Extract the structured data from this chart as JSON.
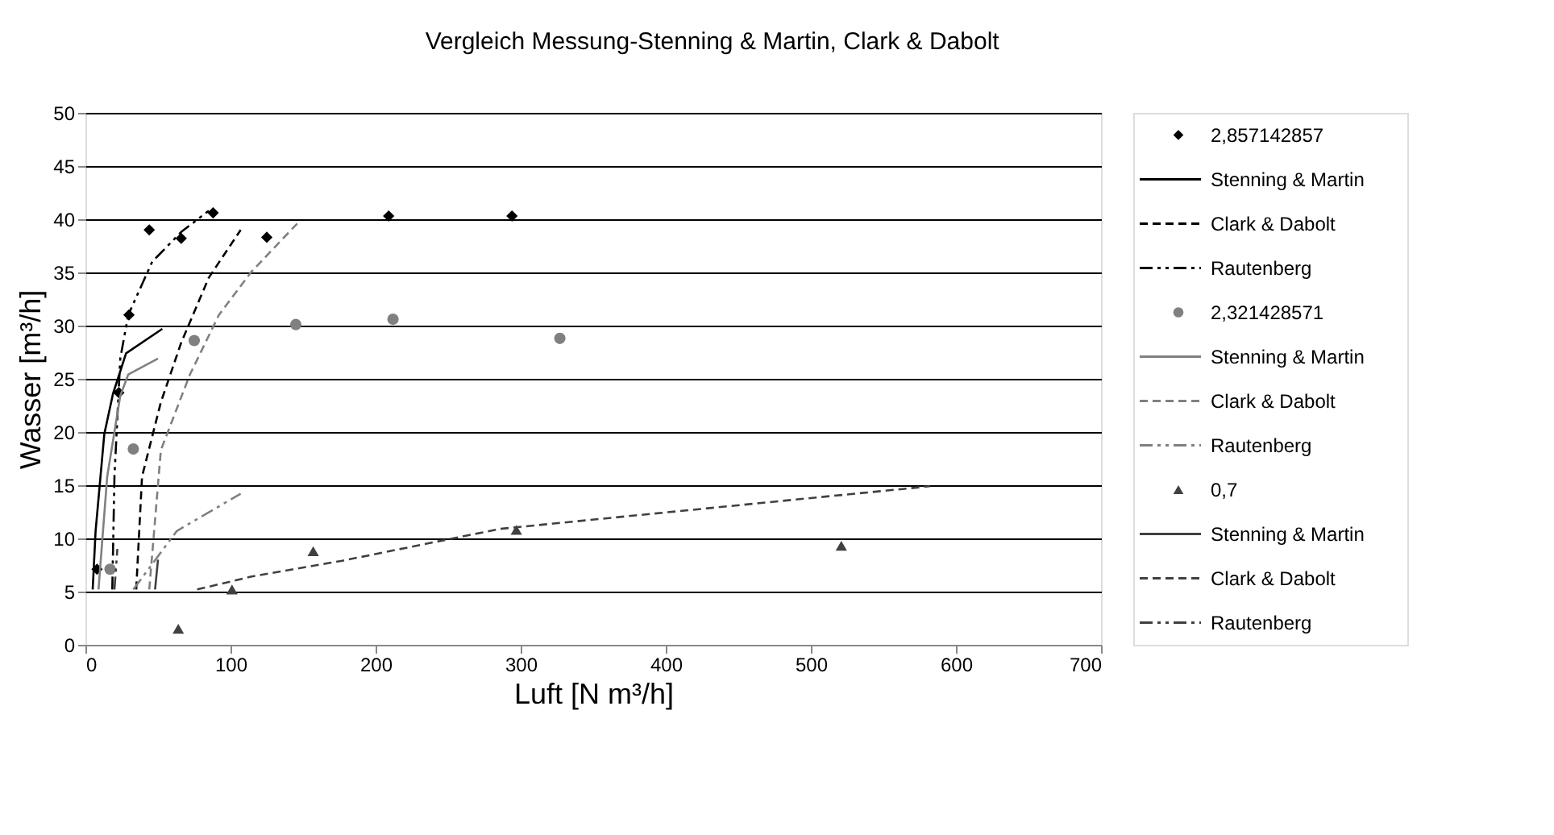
{
  "chart_data": {
    "type": "scatter",
    "title": "Vergleich Messung-Stenning & Martin, Clark & Dabolt",
    "xlabel": "Luft [N m³/h]",
    "ylabel": "Wasser [m³/h]",
    "xlim": [
      0,
      700
    ],
    "xticks": [
      0,
      100,
      200,
      300,
      400,
      500,
      600,
      700
    ],
    "ylim": [
      0,
      50
    ],
    "yticks": [
      0,
      5,
      10,
      15,
      20,
      25,
      30,
      35,
      40,
      45,
      50
    ],
    "grid": "y",
    "legend": "right",
    "series": [
      {
        "name": "2,857142857",
        "color": "#000000",
        "marker": "diamond",
        "x": [
          8,
          23,
          30,
          44,
          66,
          88,
          125,
          209,
          294
        ],
        "values": [
          7.1,
          23.7,
          31,
          39,
          38.2,
          40.6,
          38.3,
          40.3,
          40.3
        ]
      },
      {
        "type": "line",
        "name": "Stenning & Martin",
        "color": "#000000",
        "line_style": "solid",
        "x": [
          5,
          7,
          13,
          19,
          28,
          53
        ],
        "values": [
          5.2,
          10.7,
          19.8,
          23.6,
          27.4,
          29.7
        ]
      },
      {
        "type": "line",
        "name": "Clark & Dabolt",
        "color": "#000000",
        "line_style": "dashed",
        "x": [
          35,
          39,
          52,
          66,
          85,
          107
        ],
        "values": [
          5.2,
          15.8,
          22.8,
          28.4,
          34.5,
          39
        ]
      },
      {
        "type": "line",
        "name": "Rautenberg",
        "color": "#000000",
        "line_style": "dashdot",
        "x": [
          18.5,
          20,
          24,
          29.5,
          46,
          66,
          85
        ],
        "values": [
          5.2,
          15.8,
          26.9,
          31,
          36,
          38.8,
          40.8
        ]
      },
      {
        "name": "2,321428571",
        "color": "#808080",
        "marker": "circle",
        "x": [
          17,
          33,
          75,
          145,
          212,
          327
        ],
        "values": [
          7.1,
          18.4,
          28.6,
          30.1,
          30.6,
          28.8
        ]
      },
      {
        "type": "line",
        "name": "Stenning & Martin",
        "color": "#808080",
        "line_style": "solid",
        "x": [
          9,
          15,
          24,
          29.5,
          50
        ],
        "values": [
          5.2,
          15.8,
          23.4,
          25.4,
          26.9
        ]
      },
      {
        "type": "line",
        "name": "Clark & Dabolt",
        "color": "#808080",
        "line_style": "dashed",
        "x": [
          44,
          52,
          72,
          92,
          114,
          146
        ],
        "values": [
          5.2,
          18.3,
          25.4,
          31,
          35,
          39.6
        ]
      },
      {
        "type": "line",
        "name": "Rautenberg",
        "color": "#808080",
        "line_style": "dashdot",
        "x": [
          33,
          63,
          107
        ],
        "values": [
          5.2,
          10.7,
          14.2
        ]
      },
      {
        "name": "0,7",
        "color": "#404040",
        "marker": "triangle",
        "x": [
          64,
          101,
          157,
          297,
          521
        ],
        "values": [
          1.5,
          5.2,
          8.8,
          10.8,
          9.3
        ]
      },
      {
        "type": "line",
        "name": "Stenning & Martin",
        "color": "#404040",
        "line_style": "solid",
        "x": [
          48,
          50
        ],
        "values": [
          5.2,
          8
        ]
      },
      {
        "type": "line",
        "name": "Clark & Dabolt",
        "color": "#404040",
        "line_style": "dashed",
        "x": [
          77,
          114,
          177,
          286,
          582
        ],
        "values": [
          5.2,
          6.4,
          7.9,
          10.9,
          14.9
        ]
      },
      {
        "type": "line",
        "name": "Rautenberg",
        "color": "#404040",
        "line_style": "dashdot",
        "x": [
          20,
          22
        ],
        "values": [
          5.2,
          9
        ]
      }
    ]
  }
}
